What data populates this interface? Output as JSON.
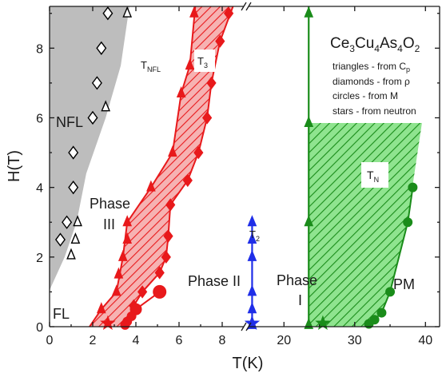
{
  "chart_data": {
    "type": "scatter",
    "title": "",
    "xlabel": "T(K)",
    "ylabel": "H(T)",
    "ylim": [
      0,
      9.2
    ],
    "grid": false,
    "x_axis_broken": true,
    "x_segments": [
      {
        "from": 0,
        "to": 9,
        "ticks": [
          0,
          2,
          4,
          6,
          8
        ]
      },
      {
        "from": 15,
        "to": 42,
        "ticks": [
          20,
          30,
          40
        ]
      }
    ],
    "y_ticks": [
      0,
      2,
      4,
      6,
      8
    ],
    "colors": {
      "nfl": "#000000",
      "t3": "#e8191b",
      "t2": "#1f2ee8",
      "tn": "#1a8c1a",
      "nfl_region": "#bdbdbd",
      "t3_region": "#f4a4a4",
      "tn_region": "#7fe07f"
    },
    "series": [
      {
        "name": "T_NFL",
        "kind": "triangles-from-Cp",
        "color": "#000000",
        "marker": "triangle-open",
        "points": [
          [
            3.6,
            9
          ],
          [
            2.6,
            6.3
          ],
          [
            1.3,
            3
          ],
          [
            1.2,
            2.5
          ],
          [
            1.0,
            2.05
          ]
        ]
      },
      {
        "name": "T_NFL",
        "kind": "diamonds-from-rho",
        "color": "#000000",
        "marker": "diamond-open",
        "points": [
          [
            2.7,
            9
          ],
          [
            2.4,
            8
          ],
          [
            2.2,
            7
          ],
          [
            2.0,
            6
          ],
          [
            1.1,
            5
          ],
          [
            1.1,
            4
          ],
          [
            0.8,
            3
          ],
          [
            0.5,
            2.5
          ]
        ]
      },
      {
        "name": "T3",
        "kind": "triangles-from-Cp",
        "color": "#e8191b",
        "marker": "triangle",
        "points": [
          [
            6.7,
            9
          ],
          [
            6.5,
            7.5
          ],
          [
            6.1,
            6.7
          ],
          [
            5.7,
            5
          ],
          [
            4.7,
            4
          ],
          [
            3.6,
            3
          ],
          [
            3.6,
            2.5
          ],
          [
            3.4,
            2.0
          ],
          [
            3.2,
            1.5
          ],
          [
            3.1,
            1.0
          ],
          [
            2.4,
            0.5
          ]
        ]
      },
      {
        "name": "T3",
        "kind": "diamonds-from-rho",
        "color": "#e8191b",
        "marker": "diamond",
        "points": [
          [
            8.3,
            9
          ],
          [
            7.9,
            8.2
          ],
          [
            7.5,
            7
          ],
          [
            7.3,
            6
          ],
          [
            6.9,
            5
          ],
          [
            6.4,
            4.2
          ],
          [
            5.6,
            3.5
          ],
          [
            5.5,
            2.6
          ],
          [
            5.4,
            2.0
          ],
          [
            5.1,
            1.55
          ],
          [
            4.3,
            1.0
          ],
          [
            3.9,
            0.6
          ]
        ]
      },
      {
        "name": "T3",
        "kind": "circles-from-M",
        "color": "#e8191b",
        "marker": "circle",
        "points": [
          [
            5.1,
            1.0
          ],
          [
            4.0,
            0.5
          ],
          [
            3.8,
            0.3
          ],
          [
            3.6,
            0.15
          ],
          [
            3.5,
            0.05
          ]
        ]
      },
      {
        "name": "T3",
        "kind": "stars-from-neutron",
        "color": "#e8191b",
        "marker": "star",
        "points": [
          [
            2.7,
            0.05
          ]
        ]
      },
      {
        "name": "T2",
        "kind": "triangles-from-Cp",
        "color": "#1f2ee8",
        "marker": "triangle",
        "points": [
          [
            15.5,
            3.0
          ],
          [
            15.5,
            2.5
          ],
          [
            15.5,
            2.0
          ],
          [
            15.5,
            1.0
          ],
          [
            15.5,
            0.5
          ],
          [
            15.5,
            0.05
          ]
        ]
      },
      {
        "name": "T2",
        "kind": "stars-from-neutron",
        "color": "#1f2ee8",
        "marker": "star",
        "points": [
          [
            15.5,
            0.05
          ]
        ]
      },
      {
        "name": "TN",
        "kind": "triangles-from-Cp",
        "color": "#1a8c1a",
        "marker": "triangle",
        "points": [
          [
            23.5,
            9
          ],
          [
            23.5,
            5.85
          ],
          [
            23.5,
            3.0
          ],
          [
            23.5,
            0.05
          ]
        ]
      },
      {
        "name": "TN",
        "kind": "circles-from-M",
        "color": "#1a8c1a",
        "marker": "circle",
        "points": [
          [
            38.2,
            4.0
          ],
          [
            37.5,
            3.0
          ],
          [
            35.0,
            1.0
          ],
          [
            33.8,
            0.4
          ],
          [
            32.8,
            0.2
          ],
          [
            32.0,
            0.08
          ]
        ]
      },
      {
        "name": "TN",
        "kind": "stars-from-neutron",
        "color": "#1a8c1a",
        "marker": "star",
        "points": [
          [
            25.5,
            0.05
          ]
        ]
      }
    ],
    "region_labels": {
      "nfl": "NFL",
      "fl": "FL",
      "phase_iii_line1": "Phase",
      "phase_iii_line2": "III",
      "phase_ii": "Phase II",
      "phase_i_line1": "Phase",
      "phase_i_line2": "I",
      "pm": "PM"
    },
    "curve_labels": {
      "t_nfl_main": "T",
      "t_nfl_sub": "NFL",
      "t3_main": "T",
      "t3_sub": "3",
      "t2_main": "T",
      "t2_sub": "2",
      "tn_main": "T",
      "tn_sub": "N"
    },
    "compound": {
      "ce": "Ce",
      "n1": "3",
      "cu": "Cu",
      "n2": "4",
      "as": "As",
      "n3": "4",
      "o": "O",
      "n4": "2"
    },
    "legend_notes": {
      "triangles_prefix": "triangles - from C",
      "triangles_sub": "p",
      "diamonds_prefix": "diamonds - from ",
      "diamonds_symbol": "ρ",
      "circles": "circles - from M",
      "stars": "stars - from neutron"
    }
  }
}
